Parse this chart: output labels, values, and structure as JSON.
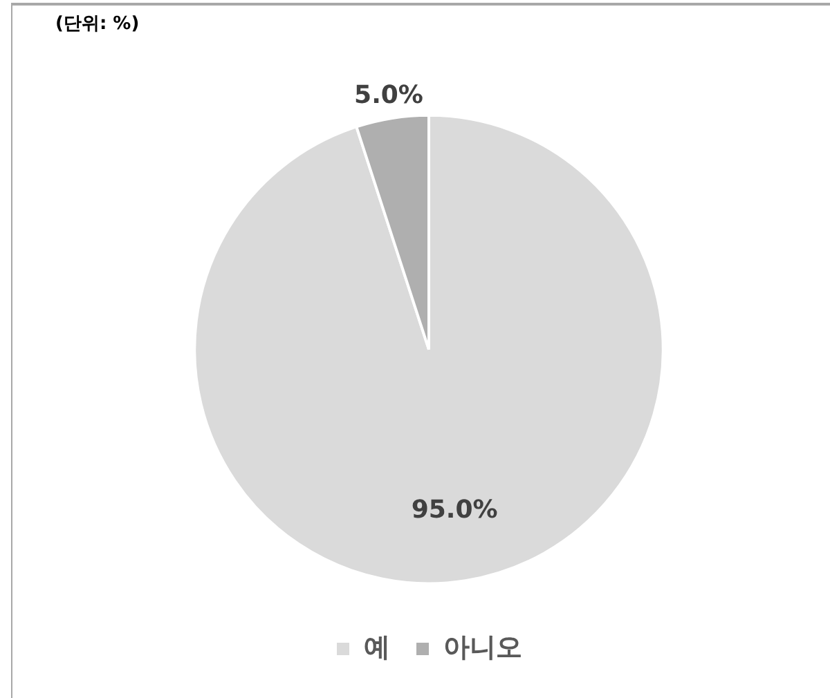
{
  "chart_data": {
    "type": "pie",
    "title": "(단위: %)",
    "categories": [
      "예",
      "아니오"
    ],
    "values": [
      95,
      5
    ],
    "colors": [
      "#dadada",
      "#afafaf"
    ],
    "value_labels": [
      "95.0%",
      "5.0%"
    ],
    "legend": "bottom"
  }
}
